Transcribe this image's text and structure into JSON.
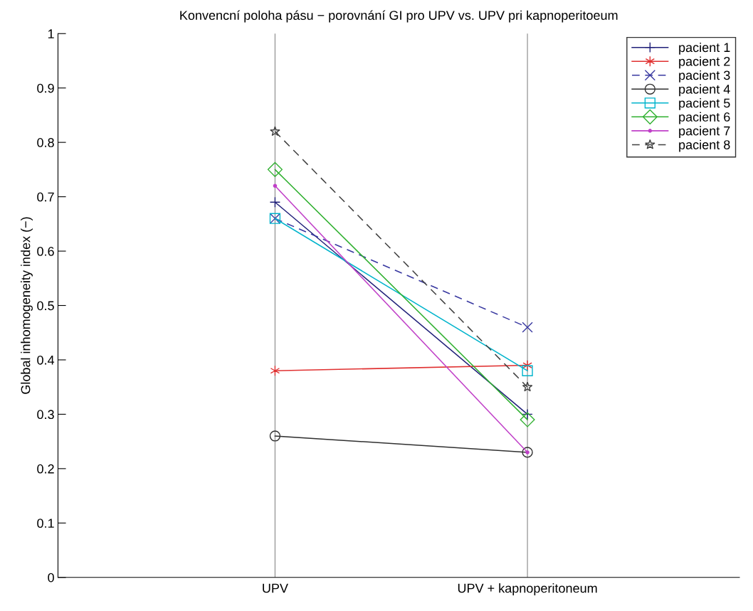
{
  "chart_data": {
    "type": "line",
    "title": "Konvencní poloha pásu − porovnání GI pro UPV vs. UPV pri kapnoperitoeum",
    "ylabel": "Global inhomogeneity index (−)",
    "categories": [
      "UPV",
      "UPV + kapnoperitoneum"
    ],
    "ylim": [
      0,
      1
    ],
    "yticks": [
      0,
      0.1,
      0.2,
      0.3,
      0.4,
      0.5,
      0.6,
      0.7,
      0.8,
      0.9,
      1
    ],
    "grid": "x",
    "legend": "top right",
    "series": [
      {
        "name": "pacient 1",
        "color": "#1f1f78",
        "values": [
          0.69,
          0.3
        ],
        "marker": "plus",
        "line_style": "solid"
      },
      {
        "name": "pacient 2",
        "color": "#e03030",
        "values": [
          0.38,
          0.39
        ],
        "marker": "cross",
        "line_style": "solid"
      },
      {
        "name": "pacient 3",
        "color": "#3838a0",
        "values": [
          0.66,
          0.46
        ],
        "marker": "x",
        "line_style": "dashed"
      },
      {
        "name": "pacient 4",
        "color": "#303030",
        "values": [
          0.26,
          0.23
        ],
        "marker": "circle",
        "line_style": "solid"
      },
      {
        "name": "pacient 5",
        "color": "#00b4cc",
        "values": [
          0.66,
          0.38
        ],
        "marker": "square",
        "line_style": "solid"
      },
      {
        "name": "pacient 6",
        "color": "#30b030",
        "values": [
          0.75,
          0.29
        ],
        "marker": "diamond",
        "line_style": "solid"
      },
      {
        "name": "pacient 7",
        "color": "#c040c8",
        "values": [
          0.72,
          0.23
        ],
        "marker": "point",
        "line_style": "solid"
      },
      {
        "name": "pacient 8",
        "color": "#404040",
        "values": [
          0.82,
          0.35
        ],
        "marker": "star",
        "line_style": "dashed"
      }
    ]
  }
}
